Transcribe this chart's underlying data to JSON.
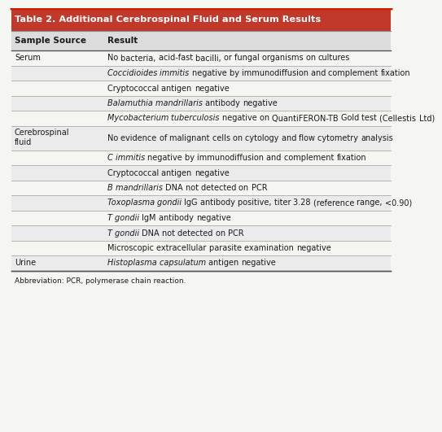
{
  "title": "Table 2. Additional Cerebrospinal Fluid and Serum Results",
  "col_headers": [
    "Sample Source",
    "Result"
  ],
  "title_bg": "#c0392b",
  "title_color": "#ffffff",
  "header_bg": "#dcdcdc",
  "row_bg_even": "#ebebeb",
  "row_bg_odd": "#f5f5f2",
  "sep_color": "#aaaaaa",
  "text_color": "#1a1a1a",
  "font_size": 7.0,
  "header_font_size": 7.5,
  "rows": [
    {
      "source": "Serum",
      "segments": [
        {
          "text": "No bacteria, acid-fast bacilli, or fungal organisms on cultures",
          "italic": false
        }
      ]
    },
    {
      "source": "",
      "segments": [
        {
          "text": "Coccidioides immitis",
          "italic": true
        },
        {
          "text": " negative by immunodiffusion and complement fixation",
          "italic": false
        }
      ]
    },
    {
      "source": "",
      "segments": [
        {
          "text": "Cryptococcal antigen negative",
          "italic": false
        }
      ]
    },
    {
      "source": "",
      "segments": [
        {
          "text": "Balamuthia mandrillaris",
          "italic": true
        },
        {
          "text": " antibody negative",
          "italic": false
        }
      ]
    },
    {
      "source": "",
      "segments": [
        {
          "text": "Mycobacterium tuberculosis",
          "italic": true
        },
        {
          "text": " negative on QuantiFERON-TB Gold test (Cellestis Ltd)",
          "italic": false
        }
      ]
    },
    {
      "source": "Cerebrospinal\nfluid",
      "segments": [
        {
          "text": "No evidence of malignant cells on cytology and flow cytometry analysis",
          "italic": false
        }
      ]
    },
    {
      "source": "",
      "segments": [
        {
          "text": "C immitis",
          "italic": true
        },
        {
          "text": " negative by immunodiffusion and complement fixation",
          "italic": false
        }
      ]
    },
    {
      "source": "",
      "segments": [
        {
          "text": "Cryptococcal antigen negative",
          "italic": false
        }
      ]
    },
    {
      "source": "",
      "segments": [
        {
          "text": "B mandrillaris",
          "italic": true
        },
        {
          "text": " DNA not detected on PCR",
          "italic": false
        }
      ]
    },
    {
      "source": "",
      "segments": [
        {
          "text": "Toxoplasma gondii",
          "italic": true
        },
        {
          "text": " IgG antibody positive, titer 3.28 (reference range, <0.90)",
          "italic": false
        }
      ]
    },
    {
      "source": "",
      "segments": [
        {
          "text": "T gondii",
          "italic": true
        },
        {
          "text": " IgM antibody negative",
          "italic": false
        }
      ]
    },
    {
      "source": "",
      "segments": [
        {
          "text": "T gondii",
          "italic": true
        },
        {
          "text": " DNA not detected on PCR",
          "italic": false
        }
      ]
    },
    {
      "source": "",
      "segments": [
        {
          "text": "Microscopic extracellular parasite examination negative",
          "italic": false
        }
      ]
    },
    {
      "source": "Urine",
      "segments": [
        {
          "text": "Histoplasma capsulatum",
          "italic": true
        },
        {
          "text": " antigen negative",
          "italic": false
        }
      ]
    }
  ],
  "footnote": "Abbreviation: PCR, polymerase chain reaction."
}
